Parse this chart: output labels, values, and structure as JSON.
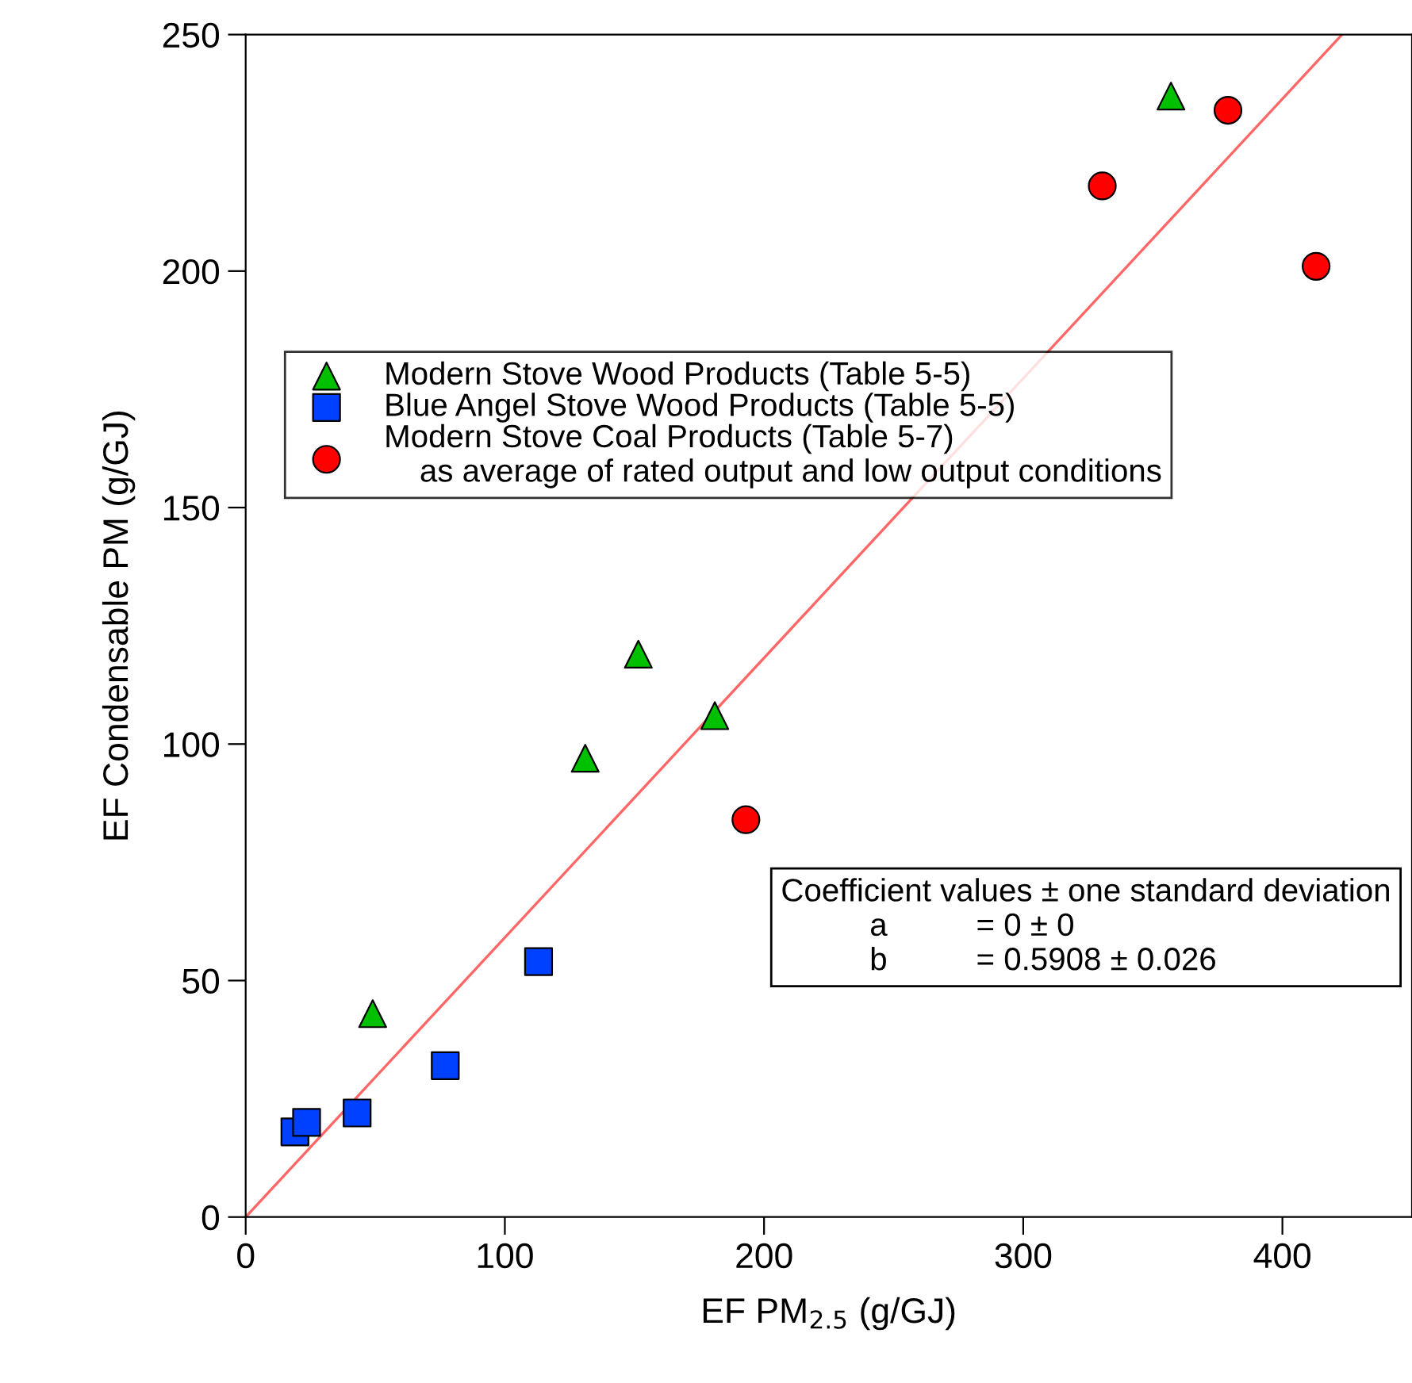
{
  "chart_data": {
    "type": "scatter",
    "xlabel": "EF PM$_{2.5}$ (g/GJ)",
    "ylabel": "EF Condensable PM (g/GJ)",
    "xlim": [
      0,
      450
    ],
    "xticks": [
      0,
      100,
      200,
      300,
      400
    ],
    "ylim": [
      0,
      250
    ],
    "yticks": [
      0,
      50,
      100,
      150,
      200,
      250
    ],
    "grid": false,
    "legend": "left",
    "series": [
      {
        "name": "Modern Stove Wood Products (Table 5-5)",
        "marker": "triangle",
        "color": "#00c000",
        "x": [
          49,
          131,
          151.5,
          181,
          357
        ],
        "values": [
          43,
          97,
          119,
          106,
          237
        ]
      },
      {
        "name": "Blue Angel Stove Wood Products (Table 5-5)",
        "marker": "square",
        "color": "#0040ff",
        "x": [
          19,
          23.5,
          43,
          77,
          113
        ],
        "values": [
          18,
          20,
          22,
          32,
          54
        ]
      },
      {
        "name": "Modern Stove Coal Products (Table 5-7)\n    as average of rated output and low output conditions",
        "marker": "circle",
        "color": "#ff0000",
        "x": [
          193,
          330.5,
          379,
          413
        ],
        "values": [
          84,
          218,
          234,
          201
        ]
      },
      {
        "type": "line",
        "marker": "none",
        "line_style": "solid",
        "color": "#ff6666",
        "x": [
          0,
          423
        ],
        "values": [
          0,
          250
        ]
      }
    ],
    "annotations": [
      "Coefficient values ± one standard deviation\n          a          = 0 ± 0\n          b          = 0.5908 ± 0.026"
    ]
  }
}
